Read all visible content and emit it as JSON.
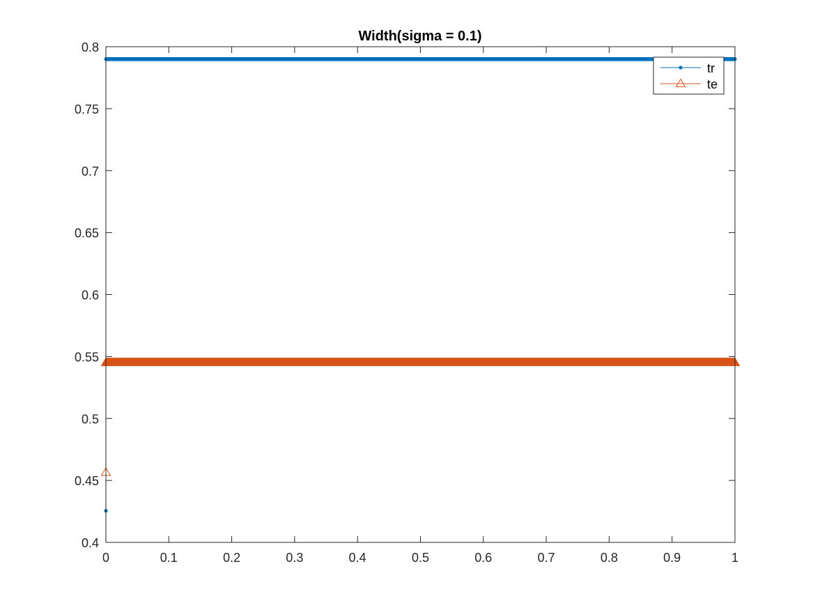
{
  "chart_data": {
    "type": "line",
    "title": "Width(sigma = 0.1)",
    "xlabel": "",
    "ylabel": "",
    "xlim": [
      0,
      1
    ],
    "ylim": [
      0.4,
      0.8
    ],
    "xticks": [
      0,
      0.1,
      0.2,
      0.3,
      0.4,
      0.5,
      0.6,
      0.7,
      0.8,
      0.9,
      1
    ],
    "xtick_labels": [
      "0",
      "0.1",
      "0.2",
      "0.3",
      "0.4",
      "0.5",
      "0.6",
      "0.7",
      "0.8",
      "0.9",
      "1"
    ],
    "yticks": [
      0.4,
      0.45,
      0.5,
      0.55,
      0.6,
      0.65,
      0.7,
      0.75,
      0.8
    ],
    "ytick_labels": [
      "0.4",
      "0.45",
      "0.5",
      "0.55",
      "0.6",
      "0.65",
      "0.7",
      "0.75",
      "0.8"
    ],
    "grid": false,
    "box": true,
    "legend_position": "top-right",
    "series": [
      {
        "name": "tr",
        "color": "#0072BD",
        "marker": "dot",
        "first_point": [
          0,
          0.4255
        ],
        "plateau_value": 0.79,
        "x_range": [
          0,
          1
        ]
      },
      {
        "name": "te",
        "color": "#D95319",
        "marker": "triangle",
        "first_point": [
          0,
          0.4565
        ],
        "plateau_value": 0.545,
        "x_range": [
          0,
          1
        ]
      }
    ]
  }
}
